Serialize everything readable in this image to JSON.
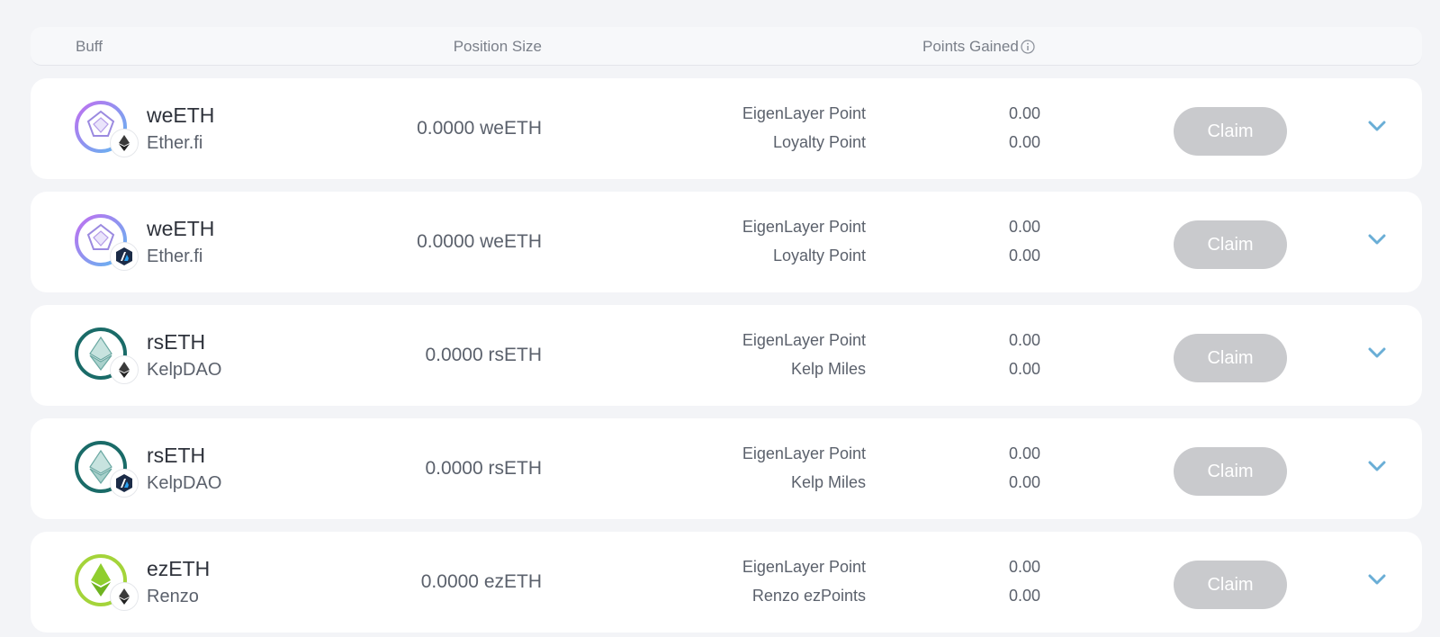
{
  "header": {
    "buff": "Buff",
    "position_size": "Position Size",
    "points_gained": "Points Gained"
  },
  "rows": [
    {
      "token": "weETH",
      "protocol": "Ether.fi",
      "position": "0.0000 weETH",
      "points": [
        {
          "label": "EigenLayer Point",
          "value": "0.00"
        },
        {
          "label": "Loyalty Point",
          "value": "0.00"
        }
      ],
      "claim": "Claim",
      "logo_icon": "etherfi-logo-icon",
      "chain_icon": "ethereum-icon"
    },
    {
      "token": "weETH",
      "protocol": "Ether.fi",
      "position": "0.0000 weETH",
      "points": [
        {
          "label": "EigenLayer Point",
          "value": "0.00"
        },
        {
          "label": "Loyalty Point",
          "value": "0.00"
        }
      ],
      "claim": "Claim",
      "logo_icon": "etherfi-logo-icon",
      "chain_icon": "arbitrum-icon"
    },
    {
      "token": "rsETH",
      "protocol": "KelpDAO",
      "position": "0.0000 rsETH",
      "points": [
        {
          "label": "EigenLayer Point",
          "value": "0.00"
        },
        {
          "label": "Kelp Miles",
          "value": "0.00"
        }
      ],
      "claim": "Claim",
      "logo_icon": "kelpdao-logo-icon",
      "chain_icon": "ethereum-icon"
    },
    {
      "token": "rsETH",
      "protocol": "KelpDAO",
      "position": "0.0000 rsETH",
      "points": [
        {
          "label": "EigenLayer Point",
          "value": "0.00"
        },
        {
          "label": "Kelp Miles",
          "value": "0.00"
        }
      ],
      "claim": "Claim",
      "logo_icon": "kelpdao-logo-icon",
      "chain_icon": "arbitrum-icon"
    },
    {
      "token": "ezETH",
      "protocol": "Renzo",
      "position": "0.0000 ezETH",
      "points": [
        {
          "label": "EigenLayer Point",
          "value": "0.00"
        },
        {
          "label": "Renzo ezPoints",
          "value": "0.00"
        }
      ],
      "claim": "Claim",
      "logo_icon": "renzo-logo-icon",
      "chain_icon": "ethereum-icon"
    }
  ],
  "colors": {
    "background": "#f3f4f7",
    "row_background": "#ffffff",
    "claim_disabled": "#c9cacd",
    "chevron": "#6aaed6",
    "etherfi_ring": "#a56ee8",
    "kelp_ring": "#1a6b68",
    "renzo_ring": "#a4d43a"
  }
}
